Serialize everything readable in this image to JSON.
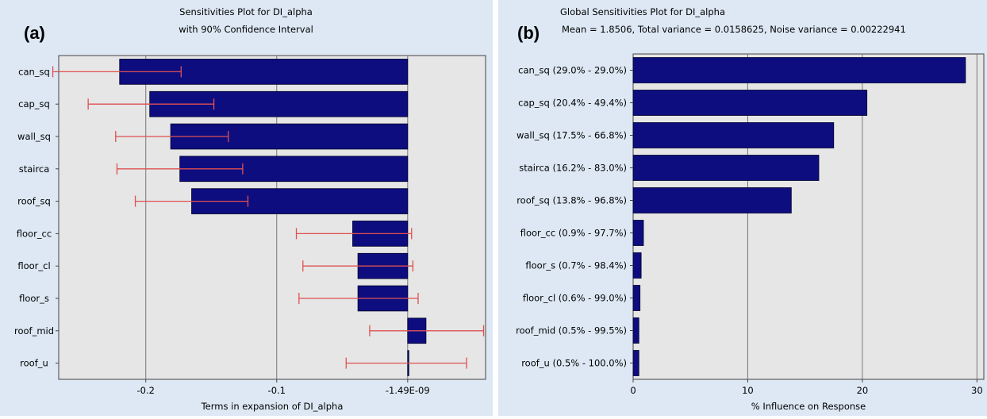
{
  "chart_data": [
    {
      "type": "bar",
      "orientation": "horizontal",
      "panel_label": "(a)",
      "title": "Sensitivities Plot for DI_alpha",
      "subtitle": "with 90% Confidence Interval",
      "xlabel": "Terms in expansion of DI_alpha",
      "ylabel": "",
      "xlim": [
        -0.2665,
        0.0595
      ],
      "xticks": [
        -0.2,
        -0.1,
        0
      ],
      "xtick_labels": [
        "-0.2",
        "-0.1",
        "-1.49E-09"
      ],
      "grid": "vertical",
      "bar_color": "#0d0d80",
      "error_bar_color": "#e05050",
      "background_color": "#e6e6e6",
      "categories": [
        "can_sq",
        "cap_sq",
        "wall_sq",
        "stairca",
        "roof_sq",
        "floor_cc",
        "floor_cl",
        "floor_s",
        "roof_mid",
        "roof_u"
      ],
      "values": [
        -0.22,
        -0.197,
        -0.181,
        -0.174,
        -0.165,
        -0.042,
        -0.038,
        -0.038,
        0.014,
        0.0
      ],
      "ci_low": [
        -0.271,
        -0.244,
        -0.223,
        -0.222,
        -0.208,
        -0.085,
        -0.08,
        -0.083,
        -0.029,
        -0.047
      ],
      "ci_high": [
        -0.173,
        -0.148,
        -0.137,
        -0.126,
        -0.122,
        0.003,
        0.004,
        0.008,
        0.058,
        0.045
      ]
    },
    {
      "type": "bar",
      "orientation": "horizontal",
      "panel_label": "(b)",
      "title": "Global Sensitivities Plot for DI_alpha",
      "subtitle": "Mean = 1.8506, Total variance = 0.0158625, Noise variance = 0.00222941",
      "xlabel": "% Influence on Response",
      "ylabel": "",
      "xlim": [
        0,
        30.6
      ],
      "xticks": [
        0,
        10,
        20,
        30
      ],
      "xtick_labels": [
        "0",
        "10",
        "20",
        "30"
      ],
      "grid": "vertical",
      "bar_color": "#0d0d80",
      "background_color": "#e6e6e6",
      "categories": [
        "can_sq (29.0% - 29.0%)",
        "cap_sq (20.4% - 49.4%)",
        "wall_sq (17.5% - 66.8%)",
        "stairca (16.2% - 83.0%)",
        "roof_sq (13.8% - 96.8%)",
        "floor_cc (0.9% - 97.7%)",
        "floor_s (0.7% - 98.4%)",
        "floor_cl (0.6% - 99.0%)",
        "roof_mid (0.5% - 99.5%)",
        "roof_u (0.5% - 100.0%)"
      ],
      "values": [
        29.0,
        20.4,
        17.5,
        16.2,
        13.8,
        0.9,
        0.7,
        0.6,
        0.5,
        0.5
      ]
    }
  ]
}
